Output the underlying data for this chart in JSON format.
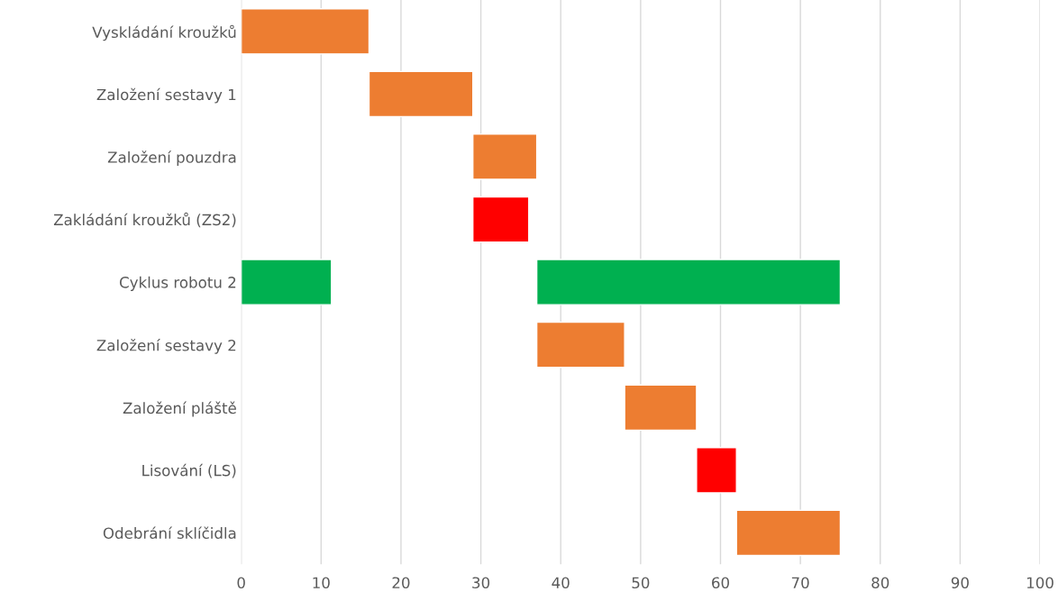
{
  "chart_data": {
    "type": "bar",
    "orientation": "horizontal",
    "categories": [
      "Vyskládání kroužků",
      "Založení sestavy 1",
      "Založení pouzdra",
      "Zakládání kroužků (ZS2)",
      "Cyklus robotu 2",
      "Založení sestavy 2",
      "Založení pláště",
      "Lisování (LS)",
      "Odebrání sklíčidla"
    ],
    "series": [
      {
        "values": [
          16,
          13,
          8,
          7,
          38,
          11,
          9,
          5,
          13
        ],
        "base": [
          0,
          16,
          29,
          29,
          37,
          37,
          48,
          57,
          62
        ],
        "colors": [
          "#ed7d31",
          "#ed7d31",
          "#ed7d31",
          "#ff0000",
          "#00b050",
          "#ed7d31",
          "#ed7d31",
          "#ff0000",
          "#ed7d31"
        ]
      },
      {
        "values": [
          null,
          null,
          null,
          null,
          11.3,
          null,
          null,
          null,
          null
        ],
        "base": [
          null,
          null,
          null,
          null,
          0,
          null,
          null,
          null,
          null
        ],
        "color": "#00b050"
      }
    ],
    "xlim": [
      0,
      100
    ],
    "xticks": [
      0,
      10,
      20,
      30,
      40,
      50,
      60,
      70,
      80,
      90,
      100
    ],
    "grid": "x",
    "legend": false
  }
}
